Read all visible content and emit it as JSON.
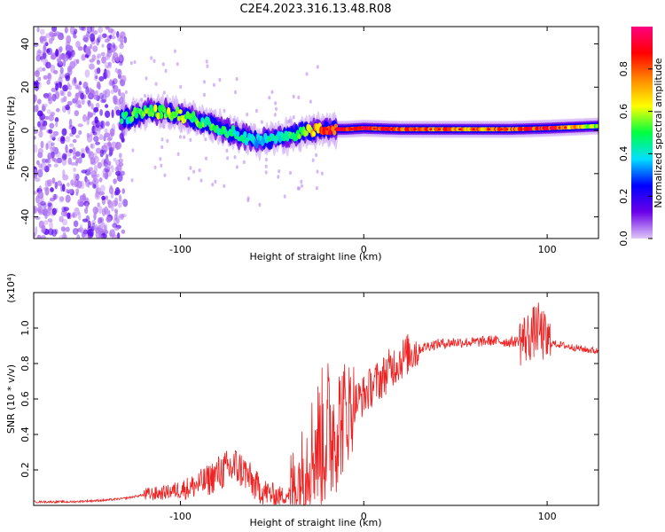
{
  "title": "C2E4.2023.316.13.48.R08",
  "colors": {
    "frame": "#000000",
    "snr_line": "#ee2222",
    "background": "#ffffff"
  },
  "chart_data": [
    {
      "type": "heatmap",
      "name": "spectrogram",
      "xlabel": "Height of straight line (km)",
      "ylabel": "Frequency (Hz)",
      "xlim": [
        -180,
        128
      ],
      "ylim": [
        -50,
        48
      ],
      "xticks": [
        -100,
        0,
        100
      ],
      "xtick_labels": [
        "-100",
        "0",
        "100"
      ],
      "yticks": [
        -40,
        -20,
        0,
        20,
        40
      ],
      "ytick_labels": [
        "-40",
        "-20",
        "0",
        "20",
        "40"
      ],
      "colorbar": {
        "label": "Normalized spectral amplitude",
        "range": [
          0,
          1
        ],
        "ticks": [
          0.0,
          0.2,
          0.4,
          0.6,
          0.8
        ],
        "tick_labels": [
          "0.0",
          "0.2",
          "0.4",
          "0.6",
          "0.8"
        ],
        "colormap": [
          "#e0c8f8",
          "#6a00e8",
          "#0000ff",
          "#00e0ff",
          "#00ff40",
          "#ffff00",
          "#ff8800",
          "#ff0000",
          "#ff0080"
        ]
      },
      "ridge": {
        "x": [
          -180,
          -165,
          -150,
          -135,
          -125,
          -115,
          -105,
          -95,
          -85,
          -75,
          -65,
          -58,
          -50,
          -42,
          -35,
          -28,
          -20,
          -10,
          0,
          20,
          50,
          80,
          100,
          128
        ],
        "freq": [
          8,
          7,
          6,
          5,
          7,
          9,
          8,
          6,
          3,
          0,
          -3,
          -5,
          -4,
          -3,
          -1,
          0,
          0.5,
          0.5,
          1,
          0.5,
          0.5,
          0.5,
          1,
          2
        ],
        "peak_amplitude": [
          0.15,
          0.2,
          0.25,
          0.45,
          0.55,
          0.6,
          0.62,
          0.6,
          0.55,
          0.5,
          0.45,
          0.4,
          0.45,
          0.5,
          0.6,
          0.7,
          0.9,
          0.95,
          0.95,
          0.9,
          0.8,
          0.85,
          1.0,
          0.6
        ]
      },
      "noise_region_x": [
        -180,
        -130
      ]
    },
    {
      "type": "line",
      "name": "snr",
      "xlabel": "Height of straight line (km)",
      "ylabel": "SNR (10 * v/v)",
      "multiplier_label": "(x10⁴)",
      "xlim": [
        -180,
        128
      ],
      "ylim": [
        0,
        1.2
      ],
      "xticks": [
        -100,
        0,
        100
      ],
      "xtick_labels": [
        "-100",
        "0",
        "100"
      ],
      "yticks": [
        0.2,
        0.4,
        0.6,
        0.8,
        1.0
      ],
      "ytick_labels": [
        "0.2",
        "0.4",
        "0.6",
        "0.8",
        "1.0"
      ],
      "series": [
        {
          "name": "SNR",
          "x": [
            -180,
            -160,
            -140,
            -130,
            -120,
            -110,
            -100,
            -95,
            -90,
            -85,
            -80,
            -75,
            -70,
            -65,
            -60,
            -55,
            -50,
            -45,
            -40,
            -35,
            -30,
            -25,
            -20,
            -15,
            -10,
            -5,
            0,
            5,
            10,
            15,
            20,
            25,
            30,
            35,
            40,
            50,
            60,
            70,
            80,
            85,
            90,
            95,
            100,
            110,
            120,
            128
          ],
          "y": [
            0.02,
            0.02,
            0.03,
            0.04,
            0.06,
            0.07,
            0.09,
            0.1,
            0.12,
            0.14,
            0.18,
            0.2,
            0.22,
            0.19,
            0.12,
            0.08,
            0.06,
            0.05,
            0.07,
            0.15,
            0.28,
            0.35,
            0.4,
            0.45,
            0.52,
            0.58,
            0.62,
            0.68,
            0.72,
            0.78,
            0.82,
            0.86,
            0.88,
            0.9,
            0.91,
            0.92,
            0.92,
            0.93,
            0.92,
            0.93,
            0.95,
            1.0,
            0.92,
            0.9,
            0.88,
            0.87
          ]
        }
      ]
    }
  ]
}
